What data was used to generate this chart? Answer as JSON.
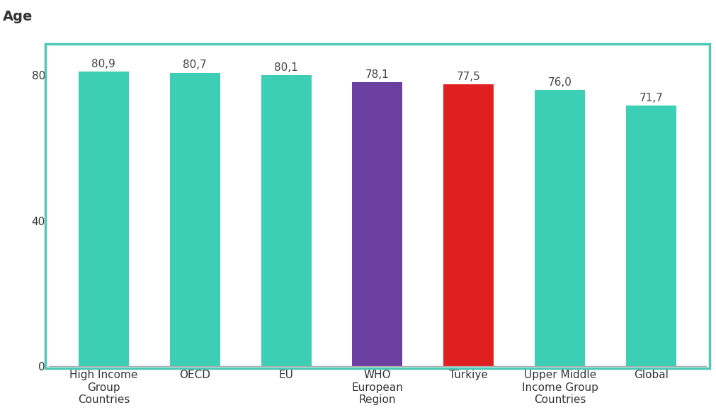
{
  "categories": [
    "High Income\nGroup\nCountries",
    "OECD",
    "EU",
    "WHO\nEuropean\nRegion",
    "Türkiye",
    "Upper Middle\nIncome Group\nCountries",
    "Global"
  ],
  "values": [
    80.9,
    80.7,
    80.1,
    78.1,
    77.5,
    76.0,
    71.7
  ],
  "labels": [
    "80,9",
    "80,7",
    "80,1",
    "78,1",
    "77,5",
    "76,0",
    "71,7"
  ],
  "bar_colors": [
    "#3dcfb6",
    "#3dcfb6",
    "#3dcfb6",
    "#6b3fa0",
    "#e02020",
    "#3dcfb6",
    "#3dcfb6"
  ],
  "age_label": "Age",
  "ylim": [
    0,
    88
  ],
  "yticks": [
    0,
    40,
    80
  ],
  "background_color": "#ffffff",
  "plot_bg_color": "#ffffff",
  "border_color": "#4ec9b8",
  "tick_fontsize": 11,
  "bar_value_fontsize": 11,
  "age_label_fontsize": 14,
  "bar_width": 0.55
}
